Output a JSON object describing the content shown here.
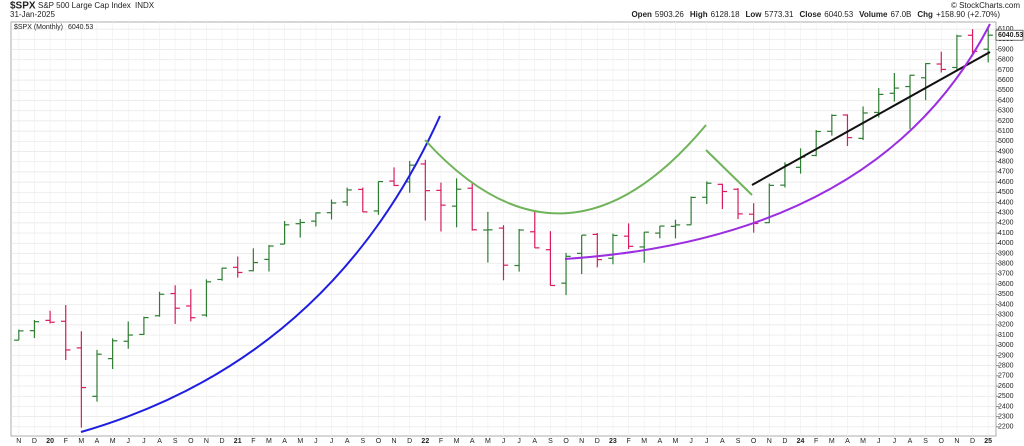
{
  "chart_data": {
    "type": "ohlc",
    "symbol": "$SPX",
    "name": "S&P 500 Large Cap Index",
    "exchange": "INDX",
    "date": "31-Jan-2025",
    "quote": [
      {
        "label": "Open",
        "value": "5903.26"
      },
      {
        "label": "High",
        "value": "6128.18"
      },
      {
        "label": "Low",
        "value": "5773.31"
      },
      {
        "label": "Close",
        "value": "6040.53"
      },
      {
        "label": "Volume",
        "value": "67.0B"
      },
      {
        "label": "Chg",
        "value": "+158.90 (+2.70%)"
      }
    ],
    "credit": "© StockCharts.com",
    "legend": "$SPX (Monthly)",
    "up_color": "#2e7d32",
    "down_color": "#d81b60",
    "grid": true,
    "categories": [
      "N",
      "D",
      "20",
      "F",
      "M",
      "A",
      "M",
      "J",
      "J",
      "A",
      "S",
      "O",
      "N",
      "D",
      "21",
      "F",
      "M",
      "A",
      "M",
      "J",
      "J",
      "A",
      "S",
      "O",
      "N",
      "D",
      "22",
      "F",
      "M",
      "A",
      "M",
      "J",
      "J",
      "A",
      "S",
      "O",
      "N",
      "D",
      "23",
      "F",
      "M",
      "A",
      "M",
      "J",
      "J",
      "A",
      "S",
      "O",
      "N",
      "D",
      "24",
      "F",
      "M",
      "A",
      "M",
      "J",
      "J",
      "A",
      "S",
      "O",
      "N",
      "D",
      "25"
    ],
    "open": [
      3050,
      3143,
      3244,
      3235,
      2974,
      2499,
      2869,
      3039,
      3106,
      3289,
      3507,
      3385,
      3296,
      3645,
      3764,
      3731,
      3842,
      3992,
      4192,
      4217,
      4300,
      4406,
      4528,
      4317,
      4610,
      4602,
      4778,
      4519,
      4364,
      4540,
      4130,
      4149,
      3782,
      4113,
      3937,
      3609,
      3901,
      4087,
      3853,
      4070,
      3964,
      4100,
      4166,
      4181,
      4451,
      4578,
      4530,
      4285,
      4202,
      4570,
      4745,
      4861,
      5098,
      5258,
      5029,
      5283,
      5471,
      5537,
      5623,
      5758,
      5724,
      6040,
      5903.26
    ],
    "high": [
      3154,
      3247,
      3338,
      3394,
      3137,
      2955,
      3068,
      3233,
      3280,
      3525,
      3588,
      3550,
      3646,
      3760,
      3870,
      3950,
      3983,
      4218,
      4238,
      4302,
      4429,
      4546,
      4546,
      4608,
      4744,
      4808,
      4819,
      4595,
      4637,
      4593,
      4307,
      4178,
      4140,
      4325,
      4119,
      3906,
      4080,
      4101,
      4095,
      4195,
      4110,
      4170,
      4231,
      4458,
      4607,
      4584,
      4541,
      4393,
      4587,
      4794,
      4931,
      5111,
      5265,
      5264,
      5342,
      5523,
      5670,
      5651,
      5767,
      5879,
      6045,
      6100,
      6128.18
    ],
    "low": [
      3050,
      3070,
      3214,
      2855,
      2192,
      2447,
      2767,
      2966,
      3101,
      3280,
      3209,
      3234,
      3279,
      3633,
      3663,
      3725,
      3723,
      3992,
      4056,
      4165,
      4233,
      4367,
      4306,
      4279,
      4561,
      4495,
      4223,
      4115,
      4157,
      4124,
      3811,
      3637,
      3722,
      3955,
      3585,
      3492,
      3698,
      3764,
      3794,
      3943,
      3809,
      4049,
      4048,
      4181,
      4385,
      4335,
      4238,
      4104,
      4198,
      4547,
      4683,
      4853,
      5056,
      4954,
      5012,
      5234,
      5390,
      5120,
      5403,
      5675,
      5697,
      5832,
      5773.31
    ],
    "close": [
      3141,
      3231,
      3226,
      2954,
      2585,
      2912,
      3044,
      3100,
      3271,
      3500,
      3363,
      3270,
      3622,
      3756,
      3714,
      3811,
      3973,
      4181,
      4204,
      4298,
      4395,
      4523,
      4308,
      4605,
      4567,
      4766,
      4516,
      4374,
      4530,
      4132,
      4132,
      3785,
      4130,
      3955,
      3586,
      3872,
      4080,
      3840,
      4077,
      3970,
      4109,
      4169,
      4180,
      4450,
      4589,
      4508,
      4288,
      4194,
      4568,
      4770,
      4846,
      5096,
      5254,
      5036,
      5278,
      5460,
      5522,
      5648,
      5762,
      5705,
      6032,
      5882,
      6040.53
    ],
    "ylim": [
      2110,
      6170
    ],
    "yticks": [
      2200,
      2300,
      2400,
      2500,
      2600,
      2700,
      2800,
      2900,
      3000,
      3100,
      3200,
      3300,
      3400,
      3500,
      3600,
      3700,
      3800,
      3900,
      4000,
      4100,
      4200,
      4300,
      4400,
      4500,
      4600,
      4700,
      4800,
      4900,
      5000,
      5100,
      5200,
      5300,
      5400,
      5500,
      5600,
      5700,
      5800,
      5900,
      6000,
      6100
    ]
  }
}
